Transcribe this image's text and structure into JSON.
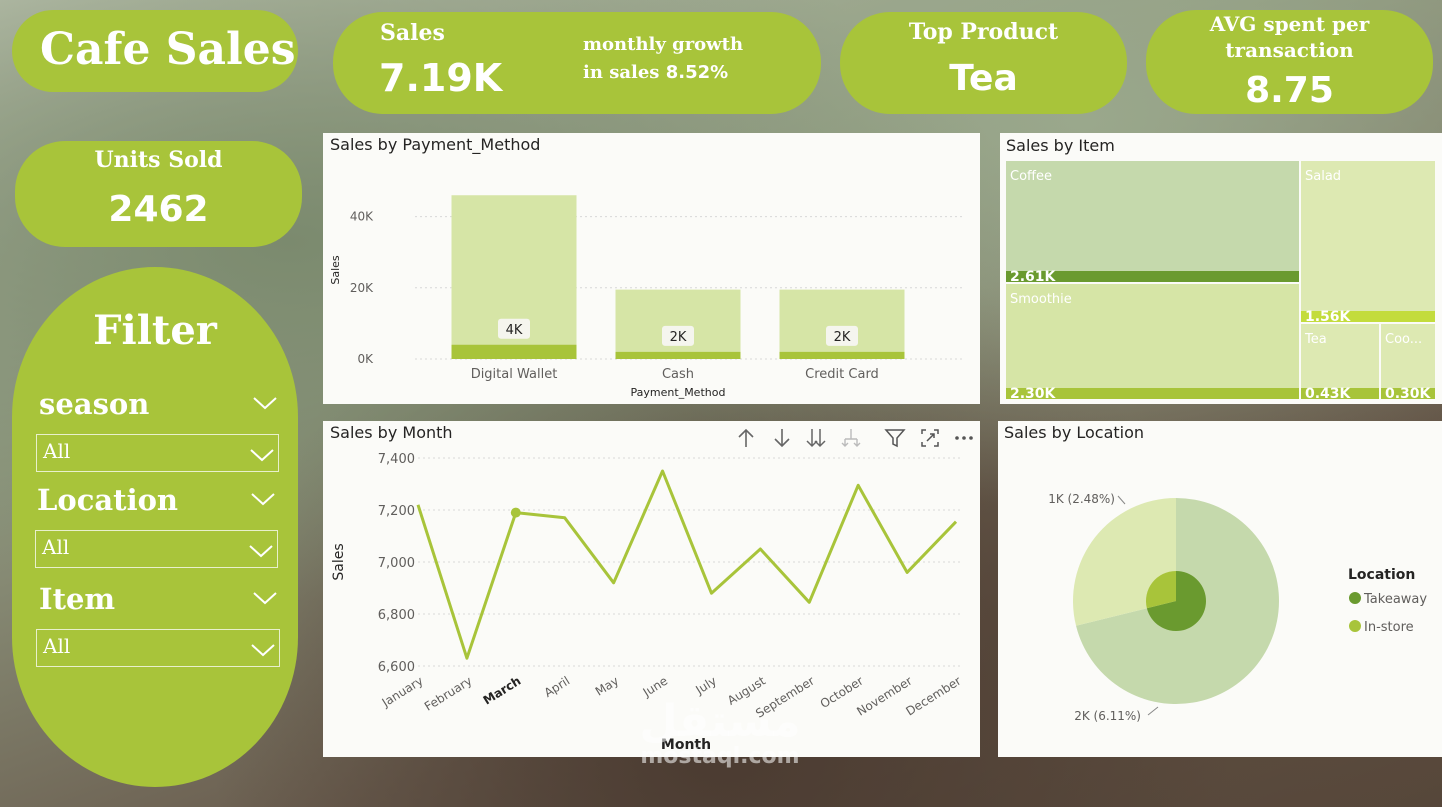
{
  "title": "Cafe Sales",
  "kpis": {
    "sales_label": "Sales",
    "sales_value": "7.19K",
    "growth_label": "monthly growth",
    "growth_prefix": "in sales",
    "growth_value": "8.52%",
    "top_product_label": "Top Product",
    "top_product_value": "Tea",
    "avg_label_line1": "AVG spent per",
    "avg_label_line2": "transaction",
    "avg_value": "8.75",
    "units_label": "Units Sold",
    "units_value": "2462"
  },
  "filter": {
    "title": "Filter",
    "slicers": [
      {
        "label": "season",
        "value": "All"
      },
      {
        "label": "Location",
        "value": "All"
      },
      {
        "label": "Item",
        "value": "All"
      }
    ]
  },
  "watermark": {
    "line1": "مستقل",
    "line2": "mostaql.com"
  },
  "colors": {
    "green": "#a8c43a",
    "dark_green": "#6a9a2f",
    "light_green": "#d6e5a6",
    "pale_green": "#c5d9ac"
  },
  "chart_data": [
    {
      "id": "payment",
      "type": "bar",
      "title": "Sales by Payment_Method",
      "xlabel": "Payment_Method",
      "ylabel": "Sales",
      "categories": [
        "Digital Wallet",
        "Cash",
        "Credit Card"
      ],
      "series": [
        {
          "name": "",
          "values": [
            46000,
            19500,
            19500
          ]
        },
        {
          "name": "",
          "values": [
            4000,
            2000,
            2000
          ]
        }
      ],
      "data_labels": [
        "4K",
        "2K",
        "2K"
      ],
      "yticks": [
        "0K",
        "20K",
        "40K"
      ],
      "ylim": [
        0,
        50000
      ]
    },
    {
      "id": "item",
      "type": "treemap",
      "title": "Sales by Item",
      "items": [
        {
          "name": "Coffee",
          "label": "2.61K",
          "value": 2.61
        },
        {
          "name": "Smoothie",
          "label": "2.30K",
          "value": 2.3
        },
        {
          "name": "Salad",
          "label": "1.56K",
          "value": 1.56
        },
        {
          "name": "Tea",
          "label": "0.43K",
          "value": 0.43
        },
        {
          "name": "Coo...",
          "label": "0.30K",
          "value": 0.3
        }
      ]
    },
    {
      "id": "month",
      "type": "line",
      "title": "Sales by Month",
      "xlabel": "Month",
      "ylabel": "Sales",
      "categories": [
        "January",
        "February",
        "March",
        "April",
        "May",
        "June",
        "July",
        "August",
        "September",
        "October",
        "November",
        "December"
      ],
      "values": [
        7220,
        6630,
        7190,
        7170,
        6920,
        7350,
        6880,
        7050,
        6845,
        7295,
        6960,
        7155
      ],
      "yticks": [
        "6,600",
        "6,800",
        "7,000",
        "7,200",
        "7,400"
      ],
      "ylim": [
        6600,
        7400
      ],
      "highlight": "March"
    },
    {
      "id": "location",
      "type": "pie",
      "title": "Sales by Location",
      "legend_title": "Location",
      "legend": [
        {
          "name": "Takeaway",
          "color": "#6a9a2f"
        },
        {
          "name": "In-store",
          "color": "#a8c43a"
        }
      ],
      "outer": [
        {
          "name": "Takeaway",
          "value": 6.11,
          "label": "2K (6.11%)"
        },
        {
          "name": "In-store",
          "value": 2.48,
          "label": "1K (2.48%)"
        }
      ]
    }
  ]
}
